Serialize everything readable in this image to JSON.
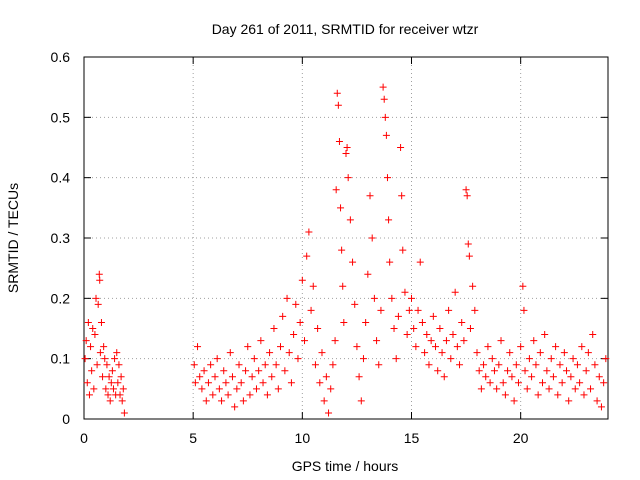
{
  "chart_data": {
    "type": "scatter",
    "title": "Day 261 of 2011, SRMTID for receiver wtzr",
    "xlabel": "GPS time / hours",
    "ylabel": "SRMTID / TECUs",
    "xlim": [
      0,
      24
    ],
    "ylim": [
      0,
      0.6
    ],
    "xticks": [
      0,
      5,
      10,
      15,
      20
    ],
    "xtick_labels": [
      "0",
      "5",
      "10",
      "15",
      "20"
    ],
    "yticks": [
      0,
      0.1,
      0.2,
      0.3,
      0.4,
      0.5,
      0.6
    ],
    "ytick_labels": [
      "0",
      "0.1",
      "0.2",
      "0.3",
      "0.4",
      "0.5",
      "0.6"
    ],
    "grid": true,
    "marker": "+",
    "colors": {
      "points": "#ff0000",
      "grid": "#a0a0a0",
      "axes": "#000000"
    },
    "series": [
      {
        "name": "SRMTID",
        "points": [
          [
            0.05,
            0.1
          ],
          [
            0.1,
            0.13
          ],
          [
            0.15,
            0.06
          ],
          [
            0.2,
            0.16
          ],
          [
            0.25,
            0.04
          ],
          [
            0.3,
            0.12
          ],
          [
            0.35,
            0.08
          ],
          [
            0.4,
            0.15
          ],
          [
            0.45,
            0.05
          ],
          [
            0.5,
            0.14
          ],
          [
            0.55,
            0.2
          ],
          [
            0.6,
            0.09
          ],
          [
            0.65,
            0.19
          ],
          [
            0.7,
            0.24
          ],
          [
            0.72,
            0.23
          ],
          [
            0.75,
            0.11
          ],
          [
            0.8,
            0.16
          ],
          [
            0.85,
            0.07
          ],
          [
            0.9,
            0.12
          ],
          [
            0.95,
            0.1
          ],
          [
            1.0,
            0.05
          ],
          [
            1.05,
            0.09
          ],
          [
            1.1,
            0.04
          ],
          [
            1.15,
            0.07
          ],
          [
            1.2,
            0.03
          ],
          [
            1.25,
            0.06
          ],
          [
            1.3,
            0.08
          ],
          [
            1.35,
            0.05
          ],
          [
            1.4,
            0.1
          ],
          [
            1.45,
            0.04
          ],
          [
            1.5,
            0.11
          ],
          [
            1.55,
            0.06
          ],
          [
            1.6,
            0.09
          ],
          [
            1.65,
            0.04
          ],
          [
            1.7,
            0.07
          ],
          [
            1.75,
            0.03
          ],
          [
            1.8,
            0.05
          ],
          [
            1.85,
            0.01
          ],
          [
            5.05,
            0.09
          ],
          [
            5.1,
            0.06
          ],
          [
            5.2,
            0.12
          ],
          [
            5.3,
            0.07
          ],
          [
            5.4,
            0.05
          ],
          [
            5.5,
            0.08
          ],
          [
            5.6,
            0.03
          ],
          [
            5.7,
            0.06
          ],
          [
            5.8,
            0.09
          ],
          [
            5.9,
            0.04
          ],
          [
            6.0,
            0.07
          ],
          [
            6.1,
            0.1
          ],
          [
            6.2,
            0.05
          ],
          [
            6.3,
            0.03
          ],
          [
            6.4,
            0.08
          ],
          [
            6.5,
            0.06
          ],
          [
            6.6,
            0.04
          ],
          [
            6.7,
            0.11
          ],
          [
            6.8,
            0.07
          ],
          [
            6.9,
            0.02
          ],
          [
            7.0,
            0.05
          ],
          [
            7.1,
            0.09
          ],
          [
            7.2,
            0.06
          ],
          [
            7.3,
            0.03
          ],
          [
            7.4,
            0.08
          ],
          [
            7.5,
            0.12
          ],
          [
            7.6,
            0.04
          ],
          [
            7.7,
            0.07
          ],
          [
            7.8,
            0.1
          ],
          [
            7.9,
            0.05
          ],
          [
            8.0,
            0.08
          ],
          [
            8.1,
            0.13
          ],
          [
            8.2,
            0.06
          ],
          [
            8.3,
            0.09
          ],
          [
            8.4,
            0.04
          ],
          [
            8.5,
            0.11
          ],
          [
            8.6,
            0.07
          ],
          [
            8.7,
            0.15
          ],
          [
            8.8,
            0.09
          ],
          [
            8.9,
            0.05
          ],
          [
            9.0,
            0.12
          ],
          [
            9.1,
            0.17
          ],
          [
            9.2,
            0.08
          ],
          [
            9.3,
            0.2
          ],
          [
            9.4,
            0.11
          ],
          [
            9.5,
            0.06
          ],
          [
            9.6,
            0.14
          ],
          [
            9.7,
            0.19
          ],
          [
            9.8,
            0.1
          ],
          [
            9.9,
            0.16
          ],
          [
            10.0,
            0.23
          ],
          [
            10.1,
            0.13
          ],
          [
            10.2,
            0.27
          ],
          [
            10.3,
            0.31
          ],
          [
            10.4,
            0.18
          ],
          [
            10.5,
            0.22
          ],
          [
            10.6,
            0.09
          ],
          [
            10.7,
            0.15
          ],
          [
            10.8,
            0.06
          ],
          [
            10.9,
            0.11
          ],
          [
            11.0,
            0.03
          ],
          [
            11.1,
            0.07
          ],
          [
            11.2,
            0.01
          ],
          [
            11.3,
            0.05
          ],
          [
            11.4,
            0.09
          ],
          [
            11.5,
            0.13
          ],
          [
            11.55,
            0.38
          ],
          [
            11.6,
            0.54
          ],
          [
            11.65,
            0.52
          ],
          [
            11.7,
            0.46
          ],
          [
            11.75,
            0.35
          ],
          [
            11.8,
            0.28
          ],
          [
            11.85,
            0.22
          ],
          [
            11.9,
            0.16
          ],
          [
            12.0,
            0.44
          ],
          [
            12.05,
            0.45
          ],
          [
            12.1,
            0.4
          ],
          [
            12.2,
            0.33
          ],
          [
            12.3,
            0.26
          ],
          [
            12.4,
            0.19
          ],
          [
            12.5,
            0.12
          ],
          [
            12.6,
            0.07
          ],
          [
            12.7,
            0.03
          ],
          [
            12.8,
            0.1
          ],
          [
            12.9,
            0.16
          ],
          [
            13.0,
            0.24
          ],
          [
            13.1,
            0.37
          ],
          [
            13.2,
            0.3
          ],
          [
            13.3,
            0.2
          ],
          [
            13.4,
            0.13
          ],
          [
            13.5,
            0.09
          ],
          [
            13.6,
            0.18
          ],
          [
            13.7,
            0.55
          ],
          [
            13.75,
            0.53
          ],
          [
            13.8,
            0.5
          ],
          [
            13.85,
            0.47
          ],
          [
            13.9,
            0.4
          ],
          [
            13.95,
            0.33
          ],
          [
            14.0,
            0.26
          ],
          [
            14.1,
            0.2
          ],
          [
            14.2,
            0.15
          ],
          [
            14.3,
            0.1
          ],
          [
            14.4,
            0.17
          ],
          [
            14.5,
            0.45
          ],
          [
            14.55,
            0.37
          ],
          [
            14.6,
            0.28
          ],
          [
            14.7,
            0.21
          ],
          [
            14.8,
            0.14
          ],
          [
            14.9,
            0.18
          ],
          [
            15.0,
            0.2
          ],
          [
            15.1,
            0.15
          ],
          [
            15.2,
            0.12
          ],
          [
            15.3,
            0.18
          ],
          [
            15.4,
            0.26
          ],
          [
            15.5,
            0.16
          ],
          [
            15.6,
            0.11
          ],
          [
            15.7,
            0.14
          ],
          [
            15.8,
            0.09
          ],
          [
            15.9,
            0.13
          ],
          [
            16.0,
            0.17
          ],
          [
            16.1,
            0.12
          ],
          [
            16.2,
            0.08
          ],
          [
            16.3,
            0.15
          ],
          [
            16.4,
            0.11
          ],
          [
            16.5,
            0.07
          ],
          [
            16.6,
            0.13
          ],
          [
            16.7,
            0.18
          ],
          [
            16.8,
            0.1
          ],
          [
            16.9,
            0.14
          ],
          [
            17.0,
            0.21
          ],
          [
            17.1,
            0.12
          ],
          [
            17.2,
            0.09
          ],
          [
            17.3,
            0.16
          ],
          [
            17.4,
            0.13
          ],
          [
            17.5,
            0.38
          ],
          [
            17.55,
            0.37
          ],
          [
            17.6,
            0.29
          ],
          [
            17.65,
            0.27
          ],
          [
            17.7,
            0.15
          ],
          [
            17.8,
            0.22
          ],
          [
            17.9,
            0.18
          ],
          [
            18.0,
            0.11
          ],
          [
            18.1,
            0.08
          ],
          [
            18.2,
            0.05
          ],
          [
            18.3,
            0.09
          ],
          [
            18.4,
            0.07
          ],
          [
            18.5,
            0.12
          ],
          [
            18.6,
            0.06
          ],
          [
            18.7,
            0.1
          ],
          [
            18.8,
            0.08
          ],
          [
            18.9,
            0.05
          ],
          [
            19.0,
            0.09
          ],
          [
            19.1,
            0.13
          ],
          [
            19.2,
            0.06
          ],
          [
            19.3,
            0.04
          ],
          [
            19.4,
            0.08
          ],
          [
            19.5,
            0.11
          ],
          [
            19.6,
            0.07
          ],
          [
            19.7,
            0.03
          ],
          [
            19.8,
            0.09
          ],
          [
            19.9,
            0.06
          ],
          [
            20.0,
            0.12
          ],
          [
            20.1,
            0.22
          ],
          [
            20.15,
            0.18
          ],
          [
            20.2,
            0.08
          ],
          [
            20.3,
            0.05
          ],
          [
            20.4,
            0.1
          ],
          [
            20.5,
            0.07
          ],
          [
            20.6,
            0.13
          ],
          [
            20.7,
            0.09
          ],
          [
            20.8,
            0.04
          ],
          [
            20.9,
            0.11
          ],
          [
            21.0,
            0.06
          ],
          [
            21.1,
            0.14
          ],
          [
            21.2,
            0.08
          ],
          [
            21.3,
            0.05
          ],
          [
            21.4,
            0.1
          ],
          [
            21.5,
            0.07
          ],
          [
            21.6,
            0.12
          ],
          [
            21.7,
            0.04
          ],
          [
            21.8,
            0.09
          ],
          [
            21.9,
            0.06
          ],
          [
            22.0,
            0.11
          ],
          [
            22.1,
            0.08
          ],
          [
            22.2,
            0.03
          ],
          [
            22.3,
            0.07
          ],
          [
            22.4,
            0.1
          ],
          [
            22.5,
            0.05
          ],
          [
            22.6,
            0.09
          ],
          [
            22.7,
            0.06
          ],
          [
            22.8,
            0.12
          ],
          [
            22.9,
            0.04
          ],
          [
            23.0,
            0.08
          ],
          [
            23.1,
            0.11
          ],
          [
            23.2,
            0.05
          ],
          [
            23.3,
            0.14
          ],
          [
            23.4,
            0.09
          ],
          [
            23.5,
            0.03
          ],
          [
            23.6,
            0.07
          ],
          [
            23.7,
            0.02
          ],
          [
            23.8,
            0.06
          ],
          [
            23.9,
            0.1
          ]
        ]
      }
    ]
  }
}
